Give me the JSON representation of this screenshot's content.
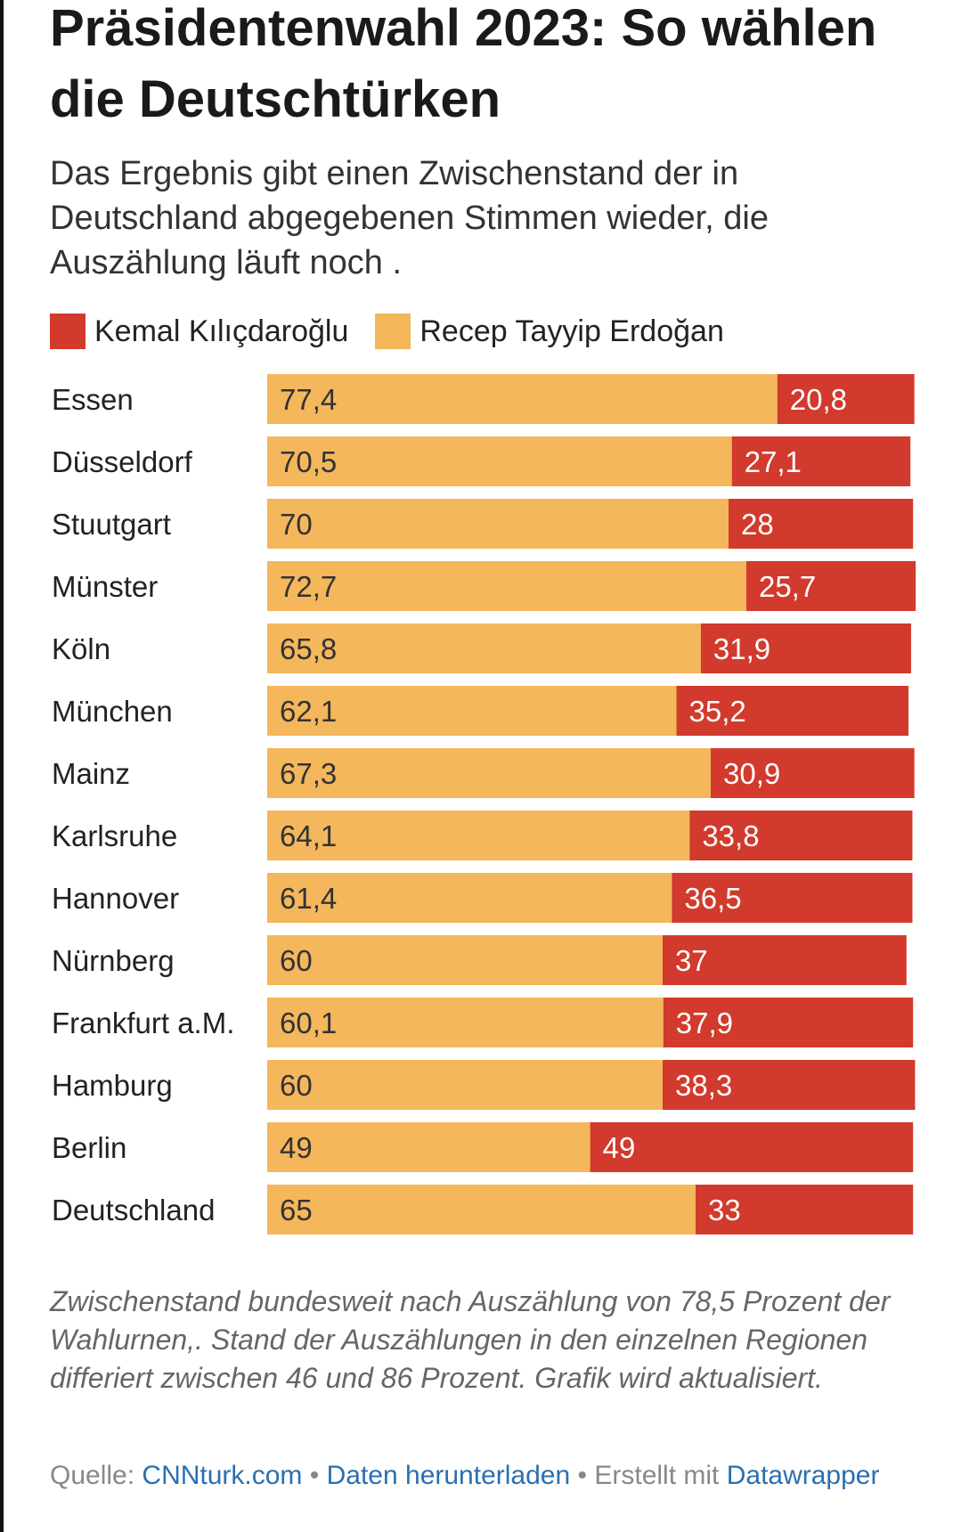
{
  "header": {
    "title": "Präsidentenwahl 2023: So wählen die Deutschtürken",
    "subtitle": "Das Ergebnis gibt einen Zwischenstand der in Deutschland abgegebenen Stimmen wieder, die Auszählung läuft noch ."
  },
  "colors": {
    "kilicdaroglu": "#d13a2c",
    "erdogan": "#f4b75c",
    "text": "#222222"
  },
  "chart_data": {
    "type": "bar",
    "orientation": "horizontal",
    "stacked": true,
    "categories": [
      "Essen",
      "Düsseldorf",
      "Stuutgart",
      "Münster",
      "Köln",
      "München",
      "Mainz",
      "Karlsruhe",
      "Hannover",
      "Nürnberg",
      "Frankfurt a.M.",
      "Hamburg",
      "Berlin",
      "Deutschland"
    ],
    "series": [
      {
        "name": "Recep Tayyip Erdoğan",
        "color": "#f4b75c",
        "values": [
          77.4,
          70.5,
          70,
          72.7,
          65.8,
          62.1,
          67.3,
          64.1,
          61.4,
          60,
          60.1,
          60,
          49,
          65
        ],
        "labels": [
          "77,4",
          "70,5",
          "70",
          "72,7",
          "65,8",
          "62,1",
          "67,3",
          "64,1",
          "61,4",
          "60",
          "60,1",
          "60",
          "49",
          "65"
        ]
      },
      {
        "name": "Kemal Kılıçdaroğlu",
        "color": "#d13a2c",
        "values": [
          20.8,
          27.1,
          28,
          25.7,
          31.9,
          35.2,
          30.9,
          33.8,
          36.5,
          37,
          37.9,
          38.3,
          49,
          33
        ],
        "labels": [
          "20,8",
          "27,1",
          "28",
          "25,7",
          "31,9",
          "35,2",
          "30,9",
          "33,8",
          "36,5",
          "37",
          "37,9",
          "38,3",
          "49",
          "33"
        ]
      }
    ],
    "legend": [
      {
        "name": "Kemal Kılıçdaroğlu",
        "color": "#d13a2c"
      },
      {
        "name": "Recep Tayyip Erdoğan",
        "color": "#f4b75c"
      }
    ],
    "xlim": [
      0,
      100
    ],
    "legend_position": "top-left"
  },
  "footer": {
    "note": "Zwischenstand bundesweit nach Auszählung von 78,5 Prozent der Wahlurnen,. Stand der Auszählungen in den einzelnen Regionen differiert zwischen 46 und 86 Prozent. Grafik wird aktualisiert.",
    "source_prefix": "Quelle:",
    "source_link": "CNNturk.com",
    "separator": "•",
    "download_link": "Daten herunterladen",
    "created_prefix": "Erstellt mit",
    "created_link": "Datawrapper"
  }
}
